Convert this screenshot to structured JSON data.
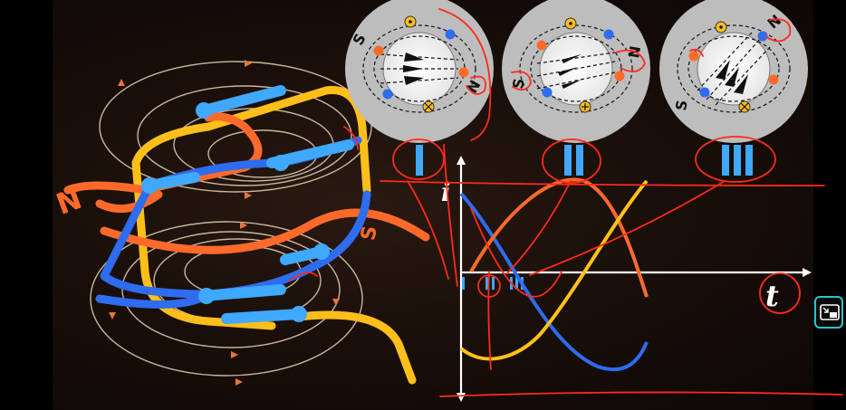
{
  "stator_panels": [
    {
      "numeral": "I"
    },
    {
      "numeral": "II"
    },
    {
      "numeral": "III"
    }
  ],
  "poles": {
    "north": "N",
    "south": "S"
  },
  "current_marks": {
    "dot": "⊙",
    "cross": "⊕"
  },
  "coil_labels": {
    "north": "N",
    "south": "S"
  },
  "graph": {
    "y_axis_label": "i",
    "x_axis_label": "t",
    "phase_ticks": [
      "I",
      "II",
      "III"
    ]
  },
  "colors": {
    "phase_blue": "#2f6bff",
    "phase_orange": "#ff6a2a",
    "phase_yellow": "#ffc21a",
    "pen_red": "#ff2a1a",
    "stator_gray": "#bdbdbd"
  },
  "icons": {
    "overlay": "picture-in-picture-icon"
  }
}
